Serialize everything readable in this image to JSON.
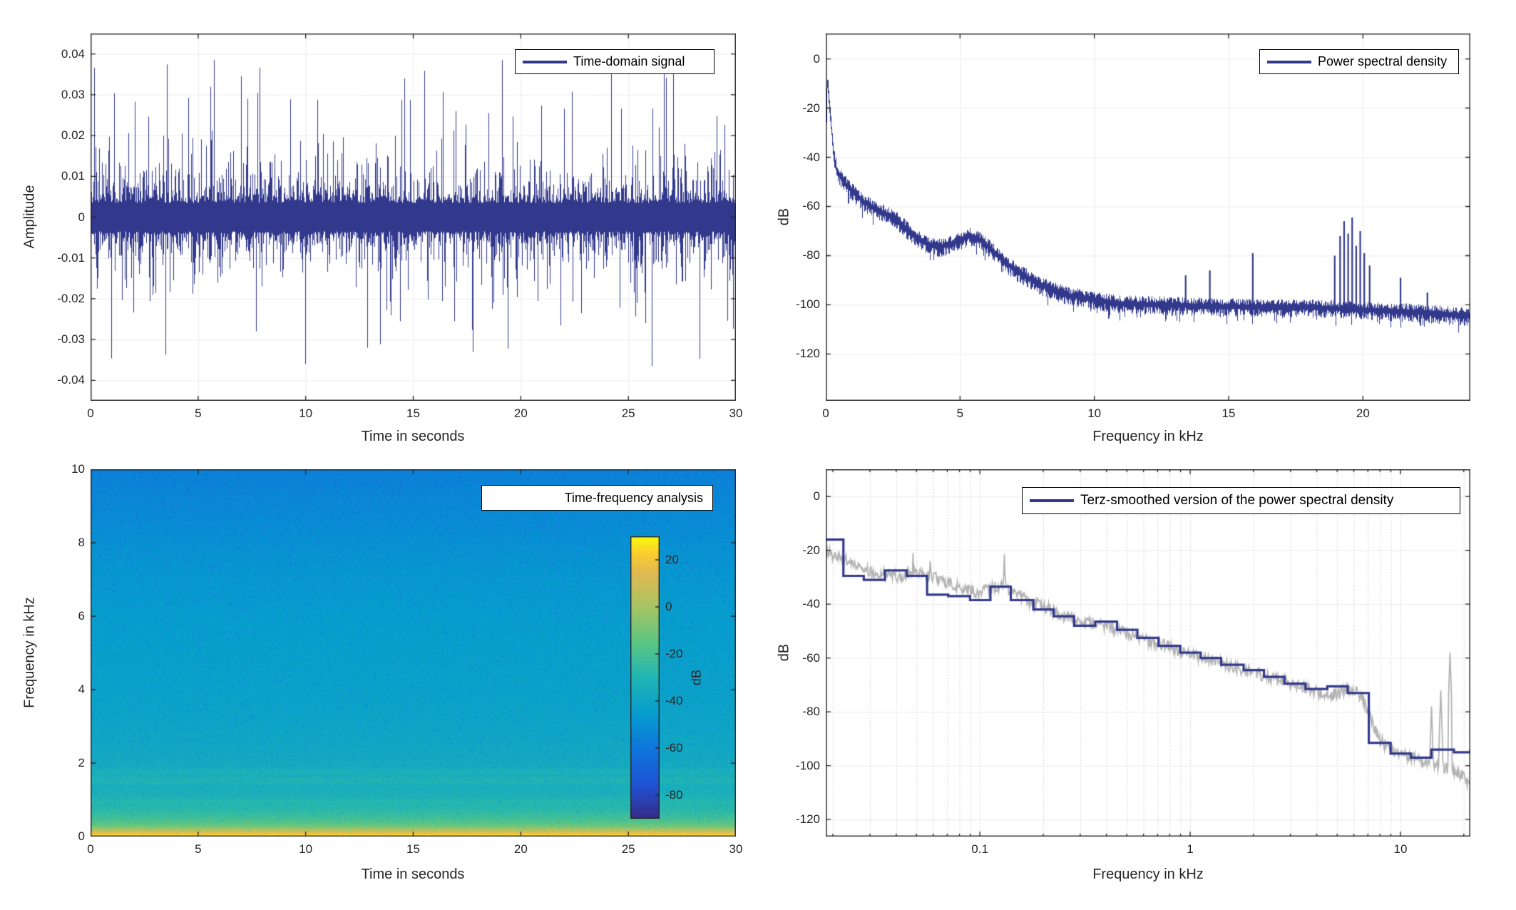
{
  "figure": {
    "background": "#ffffff",
    "axis_color": "#262626",
    "grid_color": "#ebebeb",
    "dotted_grid_color": "#c9c9c9",
    "line_color": "#32398C",
    "gray_color": "#b3b3b3",
    "seed": 1337
  },
  "chart_data": [
    {
      "id": "time-domain",
      "type": "line",
      "legend": "Time-domain signal",
      "xlabel": "Time in seconds",
      "ylabel": "Amplitude",
      "xlim": [
        0,
        30
      ],
      "ylim": [
        -0.045,
        0.045
      ],
      "xticks": [
        0,
        5,
        10,
        15,
        20,
        25,
        30
      ],
      "xtick_labels": [
        "0",
        "5",
        "10",
        "15",
        "20",
        "25",
        "30"
      ],
      "yticks": [
        0.04,
        0.03,
        0.02,
        0.01,
        0,
        -0.01,
        -0.02,
        -0.03,
        -0.04
      ],
      "ytick_labels": [
        "0.04",
        "0.03",
        "0.02",
        "0.01",
        "0",
        "-0.01",
        "-0.02",
        "-0.03",
        "-0.04"
      ],
      "grid": true,
      "signal_model": {
        "kind": "broadband-noise-envelope",
        "columns": 905,
        "core_amplitude": 0.0035,
        "laplace_scale": 0.0075,
        "max_positive": 0.0385,
        "max_negative": 0.0365,
        "spike_probability": 0.015
      }
    },
    {
      "id": "power-spectral-density",
      "type": "line",
      "legend": "Power spectral density",
      "xlabel": "Frequency in kHz",
      "ylabel": "dB",
      "xlim": [
        0,
        24
      ],
      "ylim": [
        -139,
        10.3
      ],
      "xticks": [
        0,
        5,
        10,
        15,
        20
      ],
      "xtick_labels": [
        "0",
        "5",
        "10",
        "15",
        "20"
      ],
      "yticks": [
        0,
        -20,
        -40,
        -60,
        -80,
        -100,
        -120
      ],
      "ytick_labels": [
        "0",
        "-20",
        "-40",
        "-60",
        "-80",
        "-100",
        "-120"
      ],
      "grid": true,
      "baseline_db": [
        [
          0,
          -27
        ],
        [
          0.03,
          -11
        ],
        [
          0.06,
          -9
        ],
        [
          0.12,
          -17
        ],
        [
          0.2,
          -28
        ],
        [
          0.3,
          -40
        ],
        [
          0.4,
          -45
        ],
        [
          0.6,
          -49
        ],
        [
          0.8,
          -52
        ],
        [
          1.0,
          -54
        ],
        [
          1.4,
          -58
        ],
        [
          1.8,
          -61
        ],
        [
          2.2,
          -63
        ],
        [
          2.6,
          -65
        ],
        [
          3.0,
          -69
        ],
        [
          3.4,
          -73
        ],
        [
          3.8,
          -75.5
        ],
        [
          4.2,
          -76.5
        ],
        [
          4.7,
          -75
        ],
        [
          5.1,
          -73
        ],
        [
          5.4,
          -72
        ],
        [
          5.8,
          -74
        ],
        [
          6.2,
          -78
        ],
        [
          6.7,
          -83
        ],
        [
          7.2,
          -87
        ],
        [
          8.0,
          -92
        ],
        [
          9.0,
          -96
        ],
        [
          10.0,
          -98
        ],
        [
          11.0,
          -99.5
        ],
        [
          12.5,
          -100
        ],
        [
          14.0,
          -100.5
        ],
        [
          16.0,
          -101
        ],
        [
          18.0,
          -101
        ],
        [
          20.0,
          -102
        ],
        [
          22.0,
          -103
        ],
        [
          24.0,
          -104.5
        ]
      ],
      "noise_db": 2.6,
      "spikes": [
        [
          13.4,
          -88
        ],
        [
          14.3,
          -86
        ],
        [
          15.9,
          -79
        ],
        [
          18.95,
          -80
        ],
        [
          19.15,
          -72
        ],
        [
          19.3,
          -66
        ],
        [
          19.45,
          -71
        ],
        [
          19.6,
          -64.5
        ],
        [
          19.75,
          -76
        ],
        [
          19.9,
          -70
        ],
        [
          20.05,
          -79
        ],
        [
          20.25,
          -84
        ],
        [
          21.4,
          -89
        ],
        [
          22.4,
          -95
        ]
      ]
    },
    {
      "id": "time-frequency-analysis",
      "type": "heatmap",
      "legend": "Time-frequency analysis",
      "xlabel": "Time in seconds",
      "ylabel": "Frequency in kHz",
      "xlim": [
        0,
        30
      ],
      "ylim": [
        0,
        10
      ],
      "xticks": [
        0,
        5,
        10,
        15,
        20,
        25,
        30
      ],
      "xtick_labels": [
        "0",
        "5",
        "10",
        "15",
        "20",
        "25",
        "30"
      ],
      "yticks": [
        0,
        2,
        4,
        6,
        8,
        10
      ],
      "ytick_labels": [
        "0",
        "2",
        "4",
        "6",
        "8",
        "10"
      ],
      "colorbar": {
        "label": "dB",
        "lim": [
          -90,
          30
        ],
        "ticks": [
          20,
          0,
          -20,
          -40,
          -60,
          -80
        ],
        "tick_labels": [
          "20",
          "0",
          "-20",
          "-40",
          "-60",
          "-80"
        ]
      },
      "level_profile_db_vs_kHz": [
        [
          0,
          27
        ],
        [
          0.05,
          25
        ],
        [
          0.1,
          18
        ],
        [
          0.15,
          8
        ],
        [
          0.22,
          -2
        ],
        [
          0.3,
          -11
        ],
        [
          0.4,
          -17
        ],
        [
          0.5,
          -21
        ],
        [
          0.65,
          -25
        ],
        [
          0.8,
          -28
        ],
        [
          1.0,
          -31
        ],
        [
          1.3,
          -34
        ],
        [
          1.6,
          -34
        ],
        [
          2.0,
          -37
        ],
        [
          2.5,
          -39
        ],
        [
          3.0,
          -40.5
        ],
        [
          4.0,
          -42.5
        ],
        [
          5.0,
          -43.5
        ],
        [
          6.0,
          -45
        ],
        [
          7.0,
          -47
        ],
        [
          8.0,
          -50
        ],
        [
          9.0,
          -53
        ],
        [
          10.0,
          -56
        ]
      ],
      "bright_bands_kHz": [
        [
          0.92,
          1.04,
          2
        ],
        [
          1.45,
          1.63,
          3
        ],
        [
          1.7,
          1.86,
          2.5
        ]
      ],
      "noise_db": 4.5,
      "colormap_parula": [
        [
          0.0,
          "#352A87"
        ],
        [
          0.12,
          "#2053D3"
        ],
        [
          0.25,
          "#0E76DC"
        ],
        [
          0.37,
          "#069CCF"
        ],
        [
          0.5,
          "#20B5B4"
        ],
        [
          0.62,
          "#59C584"
        ],
        [
          0.75,
          "#A6C564"
        ],
        [
          0.87,
          "#E1B952"
        ],
        [
          0.94,
          "#FCCD2E"
        ],
        [
          1.0,
          "#F9FB0E"
        ]
      ]
    },
    {
      "id": "terz-smoothed-psd",
      "type": "line",
      "legend": "Terz-smoothed version of the power spectral density",
      "xlabel": "Frequency in kHz",
      "ylabel": "dB",
      "xscale": "log",
      "xlim": [
        0.0185,
        21.5
      ],
      "ylim": [
        -126.3,
        10.1
      ],
      "xticks": [
        0.1,
        1,
        10
      ],
      "xtick_labels": [
        "0.1",
        "1",
        "10"
      ],
      "yticks": [
        0,
        -20,
        -40,
        -60,
        -80,
        -100,
        -120
      ],
      "ytick_labels": [
        "0",
        "-20",
        "-40",
        "-60",
        "-80",
        "-100",
        "-120"
      ],
      "grid": true,
      "terz_bands_center_kHz_db": [
        [
          0.02,
          -16
        ],
        [
          0.025,
          -29.5
        ],
        [
          0.0315,
          -31
        ],
        [
          0.04,
          -27.5
        ],
        [
          0.05,
          -29.5
        ],
        [
          0.063,
          -36.5
        ],
        [
          0.08,
          -37
        ],
        [
          0.1,
          -38.5
        ],
        [
          0.125,
          -33.5
        ],
        [
          0.16,
          -38.5
        ],
        [
          0.2,
          -42
        ],
        [
          0.25,
          -44.5
        ],
        [
          0.315,
          -48
        ],
        [
          0.4,
          -46.5
        ],
        [
          0.5,
          -49.5
        ],
        [
          0.63,
          -52.5
        ],
        [
          0.8,
          -55.5
        ],
        [
          1.0,
          -58
        ],
        [
          1.25,
          -60
        ],
        [
          1.6,
          -62.5
        ],
        [
          2.0,
          -64.5
        ],
        [
          2.5,
          -67
        ],
        [
          3.15,
          -69.5
        ],
        [
          4.0,
          -71.5
        ],
        [
          5.0,
          -70.5
        ],
        [
          6.3,
          -73
        ],
        [
          8.0,
          -91.5
        ],
        [
          10.0,
          -95.5
        ],
        [
          12.5,
          -97
        ],
        [
          16.0,
          -94
        ],
        [
          20.0,
          -95
        ],
        [
          25.0,
          -94
        ]
      ],
      "gray_reference_db": [
        [
          0.0185,
          -21
        ],
        [
          0.022,
          -23
        ],
        [
          0.03,
          -28
        ],
        [
          0.04,
          -30
        ],
        [
          0.05,
          -28
        ],
        [
          0.065,
          -31
        ],
        [
          0.08,
          -34
        ],
        [
          0.1,
          -36
        ],
        [
          0.11,
          -34
        ],
        [
          0.125,
          -33
        ],
        [
          0.14,
          -36
        ],
        [
          0.16,
          -38
        ],
        [
          0.2,
          -41
        ],
        [
          0.25,
          -44
        ],
        [
          0.315,
          -46.5
        ],
        [
          0.4,
          -48
        ],
        [
          0.5,
          -51
        ],
        [
          0.63,
          -53.5
        ],
        [
          0.8,
          -56
        ],
        [
          1.0,
          -58.5
        ],
        [
          1.25,
          -61
        ],
        [
          1.6,
          -63.5
        ],
        [
          2.0,
          -65.5
        ],
        [
          2.5,
          -68
        ],
        [
          3.15,
          -70
        ],
        [
          4.0,
          -72.5
        ],
        [
          4.5,
          -74
        ],
        [
          5.0,
          -73
        ],
        [
          5.5,
          -71.5
        ],
        [
          6.0,
          -72
        ],
        [
          6.5,
          -74
        ],
        [
          7.0,
          -80
        ],
        [
          7.5,
          -86
        ],
        [
          8.0,
          -91
        ],
        [
          9.0,
          -94
        ],
        [
          10.0,
          -95.5
        ],
        [
          12.0,
          -97.5
        ],
        [
          14.0,
          -99
        ],
        [
          16.0,
          -100.5
        ],
        [
          18.0,
          -102
        ],
        [
          20.0,
          -104
        ],
        [
          21.5,
          -108
        ]
      ],
      "gray_spikes": [
        [
          0.048,
          -21
        ],
        [
          0.058,
          -24
        ],
        [
          0.13,
          -21.5
        ],
        [
          14.0,
          -78
        ],
        [
          15.5,
          -72
        ],
        [
          17.2,
          -58
        ]
      ],
      "gray_noise_db": 2.2
    }
  ]
}
